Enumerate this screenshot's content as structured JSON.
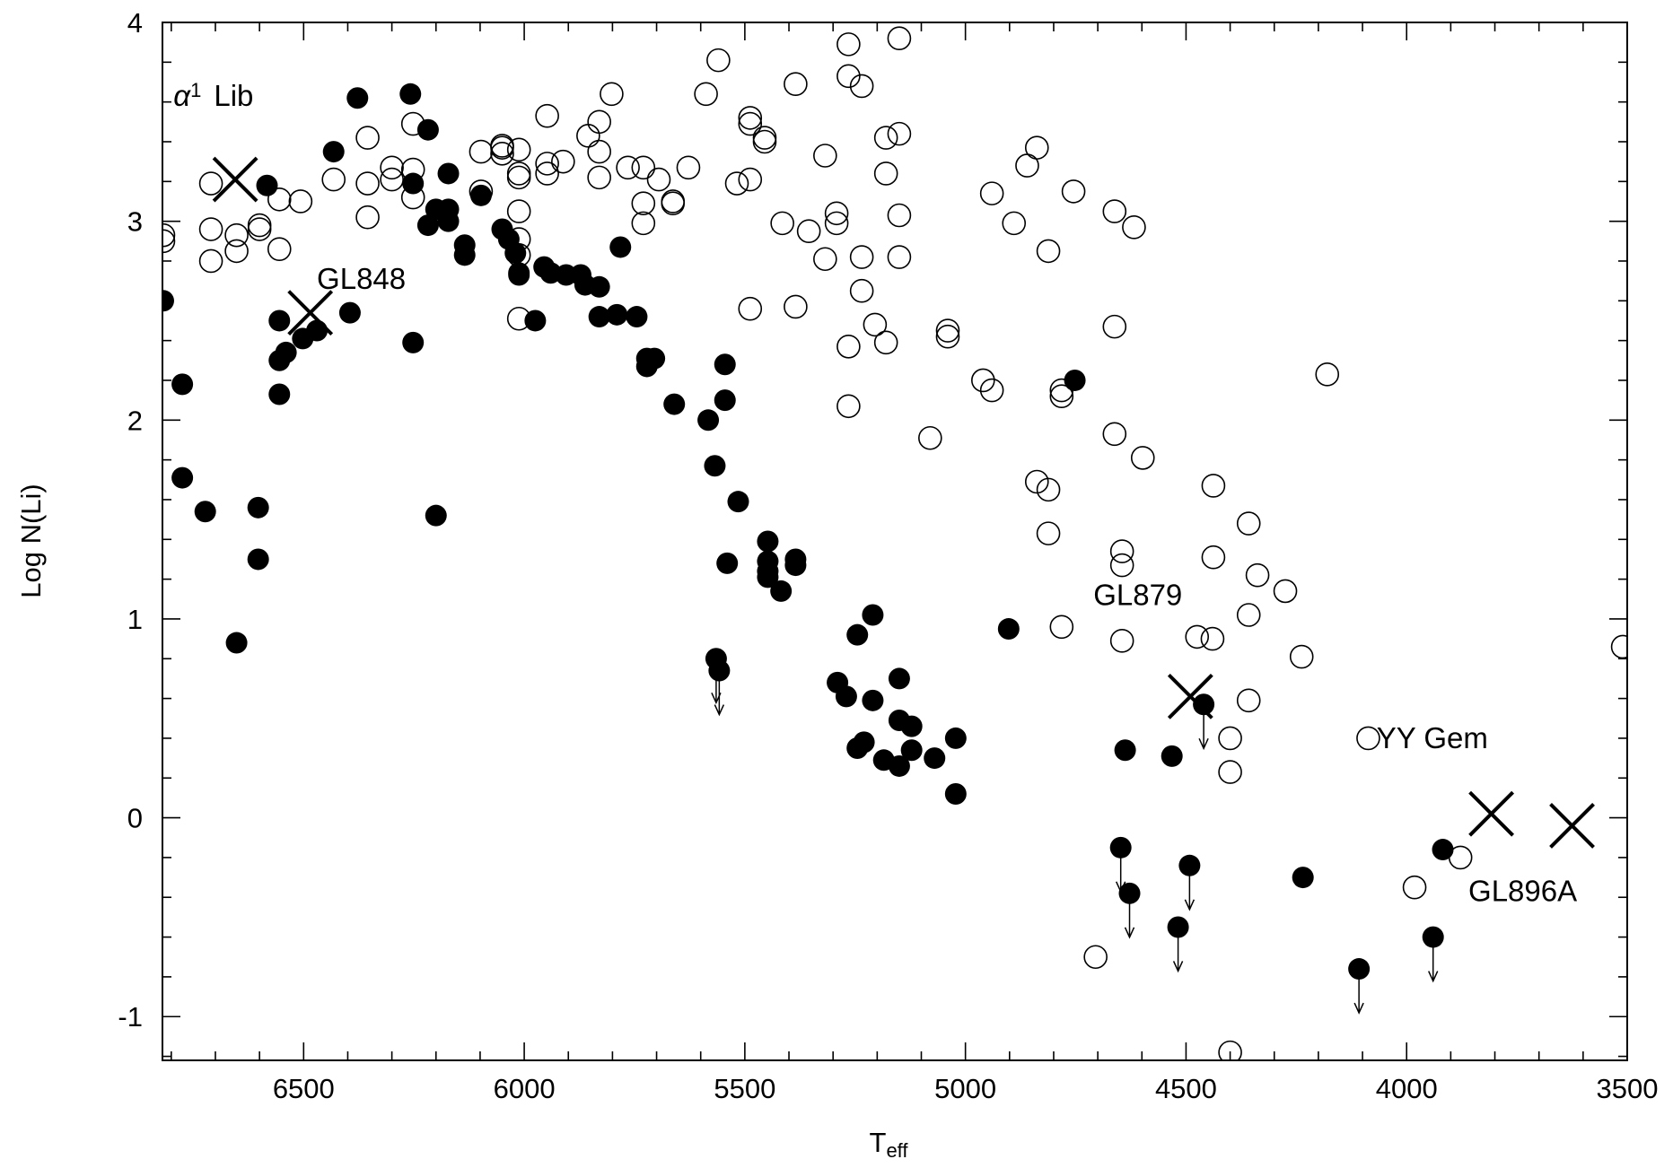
{
  "chart_data": {
    "type": "scatter",
    "title": "",
    "xlabel": "T",
    "xlabel_subscript": "eff",
    "ylabel": "Log N(Li)",
    "xlim": [
      6820,
      3500
    ],
    "ylim": [
      -1.22,
      4.0
    ],
    "x_reversed": true,
    "x_ticks": [
      6500,
      6000,
      5500,
      5000,
      4500,
      4000,
      3500
    ],
    "y_ticks": [
      -1,
      0,
      1,
      2,
      3,
      4
    ],
    "grid": false,
    "legend": "none",
    "series": [
      {
        "marker": "open-circle",
        "points": [
          [
            6818,
            2.93
          ],
          [
            6818,
            2.9
          ],
          [
            6710,
            3.19
          ],
          [
            6710,
            2.96
          ],
          [
            6710,
            2.8
          ],
          [
            6652,
            2.93
          ],
          [
            6652,
            2.85
          ],
          [
            6600,
            2.98
          ],
          [
            6600,
            2.96
          ],
          [
            6555,
            3.11
          ],
          [
            6555,
            2.86
          ],
          [
            6507,
            3.1
          ],
          [
            6432,
            3.21
          ],
          [
            6355,
            3.42
          ],
          [
            6355,
            3.19
          ],
          [
            6355,
            3.02
          ],
          [
            6300,
            3.27
          ],
          [
            6300,
            3.21
          ],
          [
            6252,
            3.49
          ],
          [
            6252,
            3.26
          ],
          [
            6252,
            3.12
          ],
          [
            6098,
            3.35
          ],
          [
            6098,
            3.15
          ],
          [
            6050,
            3.38
          ],
          [
            6050,
            3.37
          ],
          [
            6050,
            3.34
          ],
          [
            6012,
            3.36
          ],
          [
            6012,
            3.24
          ],
          [
            6012,
            3.22
          ],
          [
            6012,
            3.05
          ],
          [
            6012,
            2.91
          ],
          [
            6012,
            2.83
          ],
          [
            6012,
            2.51
          ],
          [
            5948,
            3.53
          ],
          [
            5948,
            3.29
          ],
          [
            5948,
            3.24
          ],
          [
            5912,
            3.3
          ],
          [
            5855,
            3.43
          ],
          [
            5830,
            3.5
          ],
          [
            5830,
            3.35
          ],
          [
            5830,
            3.22
          ],
          [
            5802,
            3.64
          ],
          [
            5765,
            3.27
          ],
          [
            5730,
            3.27
          ],
          [
            5730,
            3.09
          ],
          [
            5730,
            2.99
          ],
          [
            5695,
            3.21
          ],
          [
            5663,
            3.1
          ],
          [
            5663,
            3.09
          ],
          [
            5628,
            3.27
          ],
          [
            5588,
            3.64
          ],
          [
            5560,
            3.81
          ],
          [
            5518,
            3.19
          ],
          [
            5488,
            3.52
          ],
          [
            5488,
            3.49
          ],
          [
            5488,
            3.21
          ],
          [
            5488,
            2.56
          ],
          [
            5455,
            3.42
          ],
          [
            5455,
            3.4
          ],
          [
            5415,
            2.99
          ],
          [
            5385,
            3.69
          ],
          [
            5385,
            2.57
          ],
          [
            5355,
            2.95
          ],
          [
            5318,
            3.33
          ],
          [
            5318,
            2.81
          ],
          [
            5292,
            3.04
          ],
          [
            5292,
            2.99
          ],
          [
            5265,
            3.89
          ],
          [
            5265,
            3.73
          ],
          [
            5265,
            2.37
          ],
          [
            5265,
            2.07
          ],
          [
            5235,
            3.68
          ],
          [
            5235,
            2.82
          ],
          [
            5235,
            2.65
          ],
          [
            5205,
            2.48
          ],
          [
            5180,
            3.42
          ],
          [
            5180,
            3.24
          ],
          [
            5180,
            2.39
          ],
          [
            5150,
            3.92
          ],
          [
            5150,
            3.44
          ],
          [
            5150,
            3.03
          ],
          [
            5150,
            2.82
          ],
          [
            5080,
            1.91
          ],
          [
            5040,
            2.45
          ],
          [
            5040,
            2.42
          ],
          [
            4960,
            2.2
          ],
          [
            4940,
            3.14
          ],
          [
            4940,
            2.15
          ],
          [
            4890,
            2.99
          ],
          [
            4860,
            3.28
          ],
          [
            4838,
            3.37
          ],
          [
            4838,
            1.69
          ],
          [
            4812,
            2.85
          ],
          [
            4812,
            1.65
          ],
          [
            4812,
            1.43
          ],
          [
            4782,
            2.15
          ],
          [
            4782,
            2.12
          ],
          [
            4782,
            0.96
          ],
          [
            4755,
            3.15
          ],
          [
            4705,
            -0.7
          ],
          [
            4662,
            3.05
          ],
          [
            4662,
            2.47
          ],
          [
            4662,
            1.93
          ],
          [
            4645,
            1.34
          ],
          [
            4645,
            1.27
          ],
          [
            4645,
            0.89
          ],
          [
            4618,
            2.97
          ],
          [
            4598,
            1.81
          ],
          [
            4475,
            0.91
          ],
          [
            4440,
            0.9
          ],
          [
            4400,
            0.4
          ],
          [
            4400,
            0.23
          ],
          [
            4400,
            -1.18
          ],
          [
            4438,
            1.67
          ],
          [
            4438,
            1.31
          ],
          [
            4358,
            1.48
          ],
          [
            4358,
            1.02
          ],
          [
            4358,
            0.59
          ],
          [
            4338,
            1.22
          ],
          [
            4275,
            1.14
          ],
          [
            4238,
            0.81
          ],
          [
            4180,
            2.23
          ],
          [
            4087,
            0.4
          ],
          [
            3982,
            -0.35
          ],
          [
            3878,
            -0.2
          ],
          [
            3510,
            0.86
          ]
        ]
      },
      {
        "marker": "filled-circle",
        "points": [
          [
            6818,
            2.6
          ],
          [
            6775,
            2.18
          ],
          [
            6775,
            1.71
          ],
          [
            6723,
            1.54
          ],
          [
            6652,
            0.88
          ],
          [
            6603,
            1.56
          ],
          [
            6603,
            1.3
          ],
          [
            6583,
            3.18
          ],
          [
            6555,
            2.5
          ],
          [
            6555,
            2.3
          ],
          [
            6555,
            2.13
          ],
          [
            6540,
            2.34
          ],
          [
            6502,
            2.41
          ],
          [
            6470,
            2.45
          ],
          [
            6432,
            3.35
          ],
          [
            6395,
            2.54
          ],
          [
            6378,
            3.62
          ],
          [
            6258,
            3.64
          ],
          [
            6252,
            3.19
          ],
          [
            6252,
            2.39
          ],
          [
            6218,
            3.46
          ],
          [
            6218,
            2.98
          ],
          [
            6200,
            3.06
          ],
          [
            6200,
            1.52
          ],
          [
            6172,
            3.24
          ],
          [
            6172,
            3.06
          ],
          [
            6172,
            3.0
          ],
          [
            6135,
            2.88
          ],
          [
            6135,
            2.83
          ],
          [
            6098,
            3.13
          ],
          [
            6050,
            2.96
          ],
          [
            6035,
            2.91
          ],
          [
            6020,
            2.84
          ],
          [
            6012,
            2.74
          ],
          [
            6012,
            2.73
          ],
          [
            5975,
            2.5
          ],
          [
            5955,
            2.77
          ],
          [
            5940,
            2.74
          ],
          [
            5905,
            2.73
          ],
          [
            5872,
            2.73
          ],
          [
            5862,
            2.68
          ],
          [
            5830,
            2.67
          ],
          [
            5830,
            2.52
          ],
          [
            5790,
            2.53
          ],
          [
            5782,
            2.87
          ],
          [
            5745,
            2.52
          ],
          [
            5722,
            2.31
          ],
          [
            5722,
            2.27
          ],
          [
            5705,
            2.31
          ],
          [
            5660,
            2.08
          ],
          [
            5583,
            2.0
          ],
          [
            5568,
            1.77
          ],
          [
            5565,
            0.8
          ],
          [
            5558,
            0.74
          ],
          [
            5545,
            2.28
          ],
          [
            5545,
            2.1
          ],
          [
            5540,
            1.28
          ],
          [
            5515,
            1.59
          ],
          [
            5448,
            1.39
          ],
          [
            5448,
            1.29
          ],
          [
            5448,
            1.24
          ],
          [
            5448,
            1.21
          ],
          [
            5418,
            1.14
          ],
          [
            5385,
            1.3
          ],
          [
            5385,
            1.27
          ],
          [
            5290,
            0.68
          ],
          [
            5270,
            0.61
          ],
          [
            5245,
            0.92
          ],
          [
            5245,
            0.35
          ],
          [
            5230,
            0.38
          ],
          [
            5210,
            1.02
          ],
          [
            5210,
            0.59
          ],
          [
            5185,
            0.29
          ],
          [
            5150,
            0.7
          ],
          [
            5150,
            0.49
          ],
          [
            5150,
            0.26
          ],
          [
            5122,
            0.46
          ],
          [
            5122,
            0.34
          ],
          [
            5070,
            0.3
          ],
          [
            5022,
            0.4
          ],
          [
            5022,
            0.12
          ],
          [
            4902,
            0.95
          ],
          [
            4752,
            2.2
          ],
          [
            4648,
            -0.15
          ],
          [
            4638,
            0.34
          ],
          [
            4628,
            -0.38
          ],
          [
            4532,
            0.31
          ],
          [
            4518,
            -0.55
          ],
          [
            4492,
            -0.24
          ],
          [
            4460,
            0.57
          ],
          [
            4235,
            -0.3
          ],
          [
            4108,
            -0.76
          ],
          [
            3940,
            -0.6
          ],
          [
            3918,
            -0.16
          ]
        ]
      },
      {
        "marker": "cross",
        "points": [
          [
            6655,
            3.21
          ],
          [
            6485,
            2.54
          ],
          [
            4490,
            0.61
          ],
          [
            3808,
            0.02
          ],
          [
            3625,
            -0.04
          ]
        ]
      }
    ],
    "upper_limit_arrows": [
      [
        5565,
        0.8
      ],
      [
        5558,
        0.74
      ],
      [
        4648,
        -0.15
      ],
      [
        4628,
        -0.38
      ],
      [
        4518,
        -0.55
      ],
      [
        4492,
        -0.24
      ],
      [
        4460,
        0.57
      ],
      [
        4108,
        -0.76
      ],
      [
        3940,
        -0.6
      ]
    ],
    "annotations": [
      {
        "text": "Lib",
        "prefix": "α",
        "superscript": "1",
        "x": 6795,
        "y": 3.58
      },
      {
        "text": "GL848",
        "x": 6470,
        "y": 2.66
      },
      {
        "text": "GL879",
        "x": 4710,
        "y": 1.07
      },
      {
        "text": "YY Gem",
        "x": 4068,
        "y": 0.35
      },
      {
        "text": "GL896A",
        "x": 3860,
        "y": -0.42
      }
    ]
  }
}
